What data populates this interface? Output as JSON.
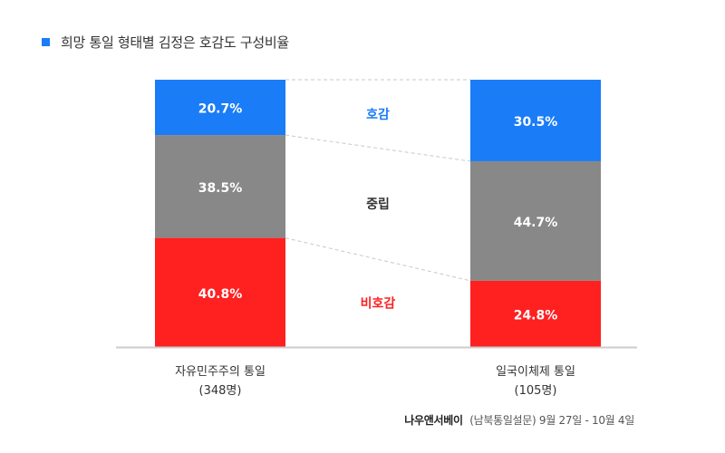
{
  "legend": {
    "label": "희망 통일 형태별 김정은 호감도 구성비율",
    "color": "#1a7cf7"
  },
  "source": {
    "brand": "나우앤서베이",
    "detail": "(남북통일설문) 9월 27일 - 10월 4일"
  },
  "chart_data": {
    "type": "bar",
    "stacked": true,
    "normalized_percent": true,
    "categories": [
      [
        "자유민주주의 통일",
        "(348명)"
      ],
      [
        "일국이체제 통일",
        "(105명)"
      ]
    ],
    "series": [
      {
        "name": "호감",
        "values": [
          20.7,
          30.5
        ],
        "labels": [
          "20.7%",
          "30.5%"
        ],
        "color": "#1a7cf7",
        "label_color": "#1a7cf7"
      },
      {
        "name": "중립",
        "values": [
          38.5,
          44.7
        ],
        "labels": [
          "38.5%",
          "44.7%"
        ],
        "color": "#888888",
        "label_color": "#333333"
      },
      {
        "name": "비호감",
        "values": [
          40.8,
          24.8
        ],
        "labels": [
          "40.8%",
          "24.8%"
        ],
        "color": "#ff2020",
        "label_color": "#ff2020"
      }
    ],
    "ylim": [
      0,
      100
    ],
    "grid": false,
    "connector_lines": "dashed"
  }
}
